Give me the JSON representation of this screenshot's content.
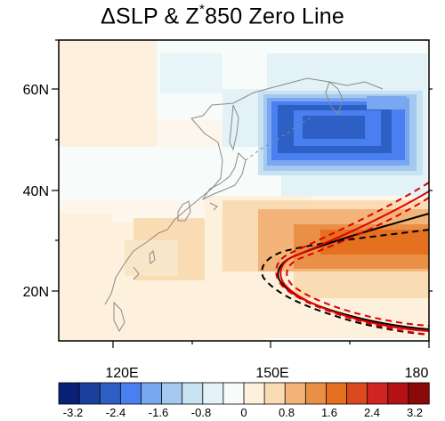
{
  "title": {
    "prefix": "ΔSLP & Z",
    "sup": "*",
    "suffix": "850 Zero Line"
  },
  "lon_labels": [
    "120E",
    "150E",
    "180"
  ],
  "lat_labels": [
    "60N",
    "40N",
    "20N"
  ],
  "lon_range": [
    105,
    180
  ],
  "lat_range": [
    10,
    70
  ],
  "colorbar": {
    "colors": [
      "#0a1f78",
      "#19409a",
      "#2d5fc4",
      "#4a7ff0",
      "#79a8f0",
      "#a4c8f0",
      "#c7e2f0",
      "#e2f2f6",
      "#f7fcfb",
      "#fdf0dc",
      "#fadcb4",
      "#f2b478",
      "#ea8f46",
      "#e47020",
      "#da4a1e",
      "#d12424",
      "#b51313",
      "#8a0a0a"
    ],
    "labels": [
      "-3.2",
      "-2.4",
      "-1.6",
      "-0.8",
      "0",
      "0.8",
      "1.6",
      "2.4",
      "3.2"
    ]
  },
  "legend": {
    "zero_line_solid": "#000000",
    "zero_line_model": "#dd0000"
  }
}
